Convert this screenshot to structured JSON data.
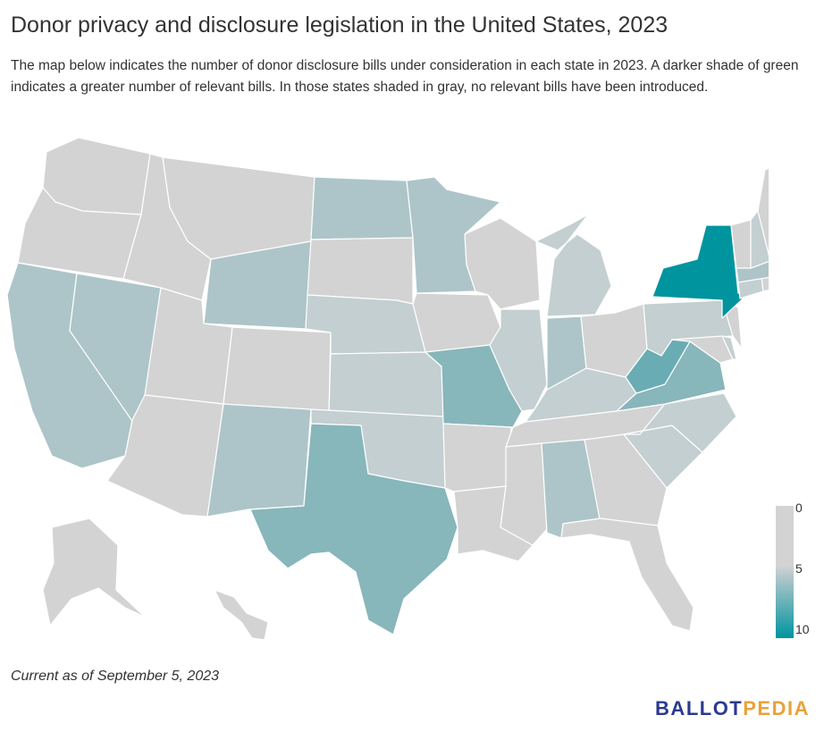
{
  "title": "Donor privacy and disclosure legislation in the United States, 2023",
  "subtitle": "The map below indicates the number of donor disclosure bills under consideration in each state in 2023. A darker shade of green indicates a greater number of relevant bills. In those states shaded in gray, no relevant bills have been introduced.",
  "footnote": "Current as of September 5, 2023",
  "logo": {
    "part1": "BALLOT",
    "part2": "PEDIA"
  },
  "legend": {
    "ticks": [
      "0",
      "5",
      "10"
    ],
    "min": 0,
    "max": 10,
    "colors": [
      "#d3d3d3",
      "#acc6c9",
      "#00949f"
    ]
  },
  "colors": {
    "zero": "#d3d3d3",
    "light": "#c3cfd1",
    "mid": "#adc5c8",
    "teal": "#87b6bb",
    "dark": "#6aacb3",
    "max": "#00949f"
  },
  "states": {
    "WA": "zero",
    "OR": "zero",
    "ID": "zero",
    "MT": "zero",
    "WY": "mid",
    "CA": "mid",
    "NV": "mid",
    "UT": "zero",
    "AZ": "zero",
    "CO": "zero",
    "NM": "mid",
    "ND": "mid",
    "SD": "zero",
    "NE": "light",
    "KS": "light",
    "OK": "light",
    "TX": "teal",
    "MN": "mid",
    "IA": "zero",
    "MO": "teal",
    "AR": "zero",
    "LA": "zero",
    "WI": "zero",
    "IL": "light",
    "MI": "light",
    "IN": "mid",
    "OH": "zero",
    "KY": "light",
    "TN": "zero",
    "MS": "zero",
    "AL": "mid",
    "GA": "zero",
    "FL": "zero",
    "SC": "light",
    "NC": "light",
    "VA": "teal",
    "WV": "dark",
    "PA": "light",
    "NY": "max",
    "ME": "zero",
    "VT": "zero",
    "NH": "light",
    "MA": "mid",
    "CT": "light",
    "NJ": "zero",
    "DE": "light",
    "MD": "zero",
    "RI": "zero",
    "AK": "zero",
    "HI": "zero"
  }
}
